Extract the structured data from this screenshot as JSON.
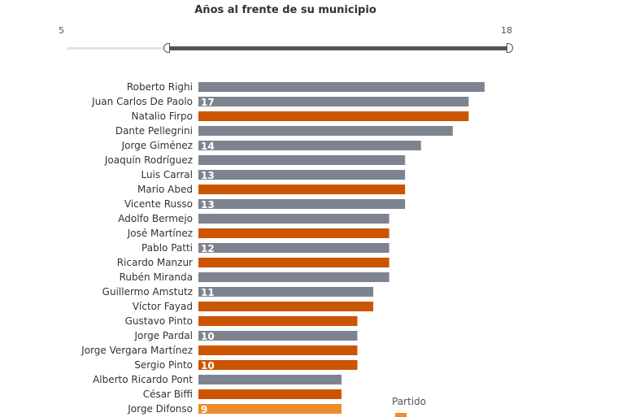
{
  "filter": {
    "title": "Años al frente de su municipio",
    "min_label": "5",
    "max_label": "18",
    "range_min": 5,
    "range_max": 18,
    "selected_min": 8,
    "selected_max": 18
  },
  "legend": {
    "title": "Partido"
  },
  "colors": {
    "gray": "#7e848f",
    "orange": "#cc5500",
    "orange_highlight": "#f08b2c"
  },
  "chart_data": {
    "type": "bar",
    "orientation": "horizontal",
    "categories": [
      "Roberto Righi",
      "Juan Carlos De Paolo",
      "Natalio Firpo",
      "Dante Pellegrini",
      "Jorge Giménez",
      "Joaquín Rodríguez",
      "Luis Carral",
      "Mario Abed",
      "Vicente Russo",
      "Adolfo Bermejo",
      "José Martínez",
      "Pablo Patti",
      "Ricardo Manzur",
      "Rubén Miranda",
      "Guillermo Amstutz",
      "Víctor Fayad",
      "Gustavo Pinto",
      "Jorge Pardal",
      "Jorge Vergara Martínez",
      "Sergio Pinto",
      "Alberto Ricardo Pont",
      "César Biffi",
      "Jorge Difonso"
    ],
    "values": [
      18,
      17,
      17,
      16,
      14,
      13,
      13,
      13,
      13,
      12,
      12,
      12,
      12,
      12,
      11,
      11,
      10,
      10,
      10,
      10,
      9,
      9,
      9
    ],
    "data_labels": [
      "",
      "17",
      "",
      "",
      "14",
      "",
      "13",
      "",
      "13",
      "",
      "",
      "12",
      "",
      "",
      "11",
      "",
      "",
      "10",
      "",
      "10",
      "",
      "",
      "9"
    ],
    "bar_colors": [
      "gray",
      "gray",
      "orange",
      "gray",
      "gray",
      "gray",
      "gray",
      "orange",
      "gray",
      "gray",
      "orange",
      "gray",
      "orange",
      "gray",
      "gray",
      "orange",
      "orange",
      "gray",
      "orange",
      "orange",
      "gray",
      "orange",
      "orange_highlight"
    ],
    "xlim": [
      0,
      18
    ],
    "legend_title": "Partido"
  }
}
